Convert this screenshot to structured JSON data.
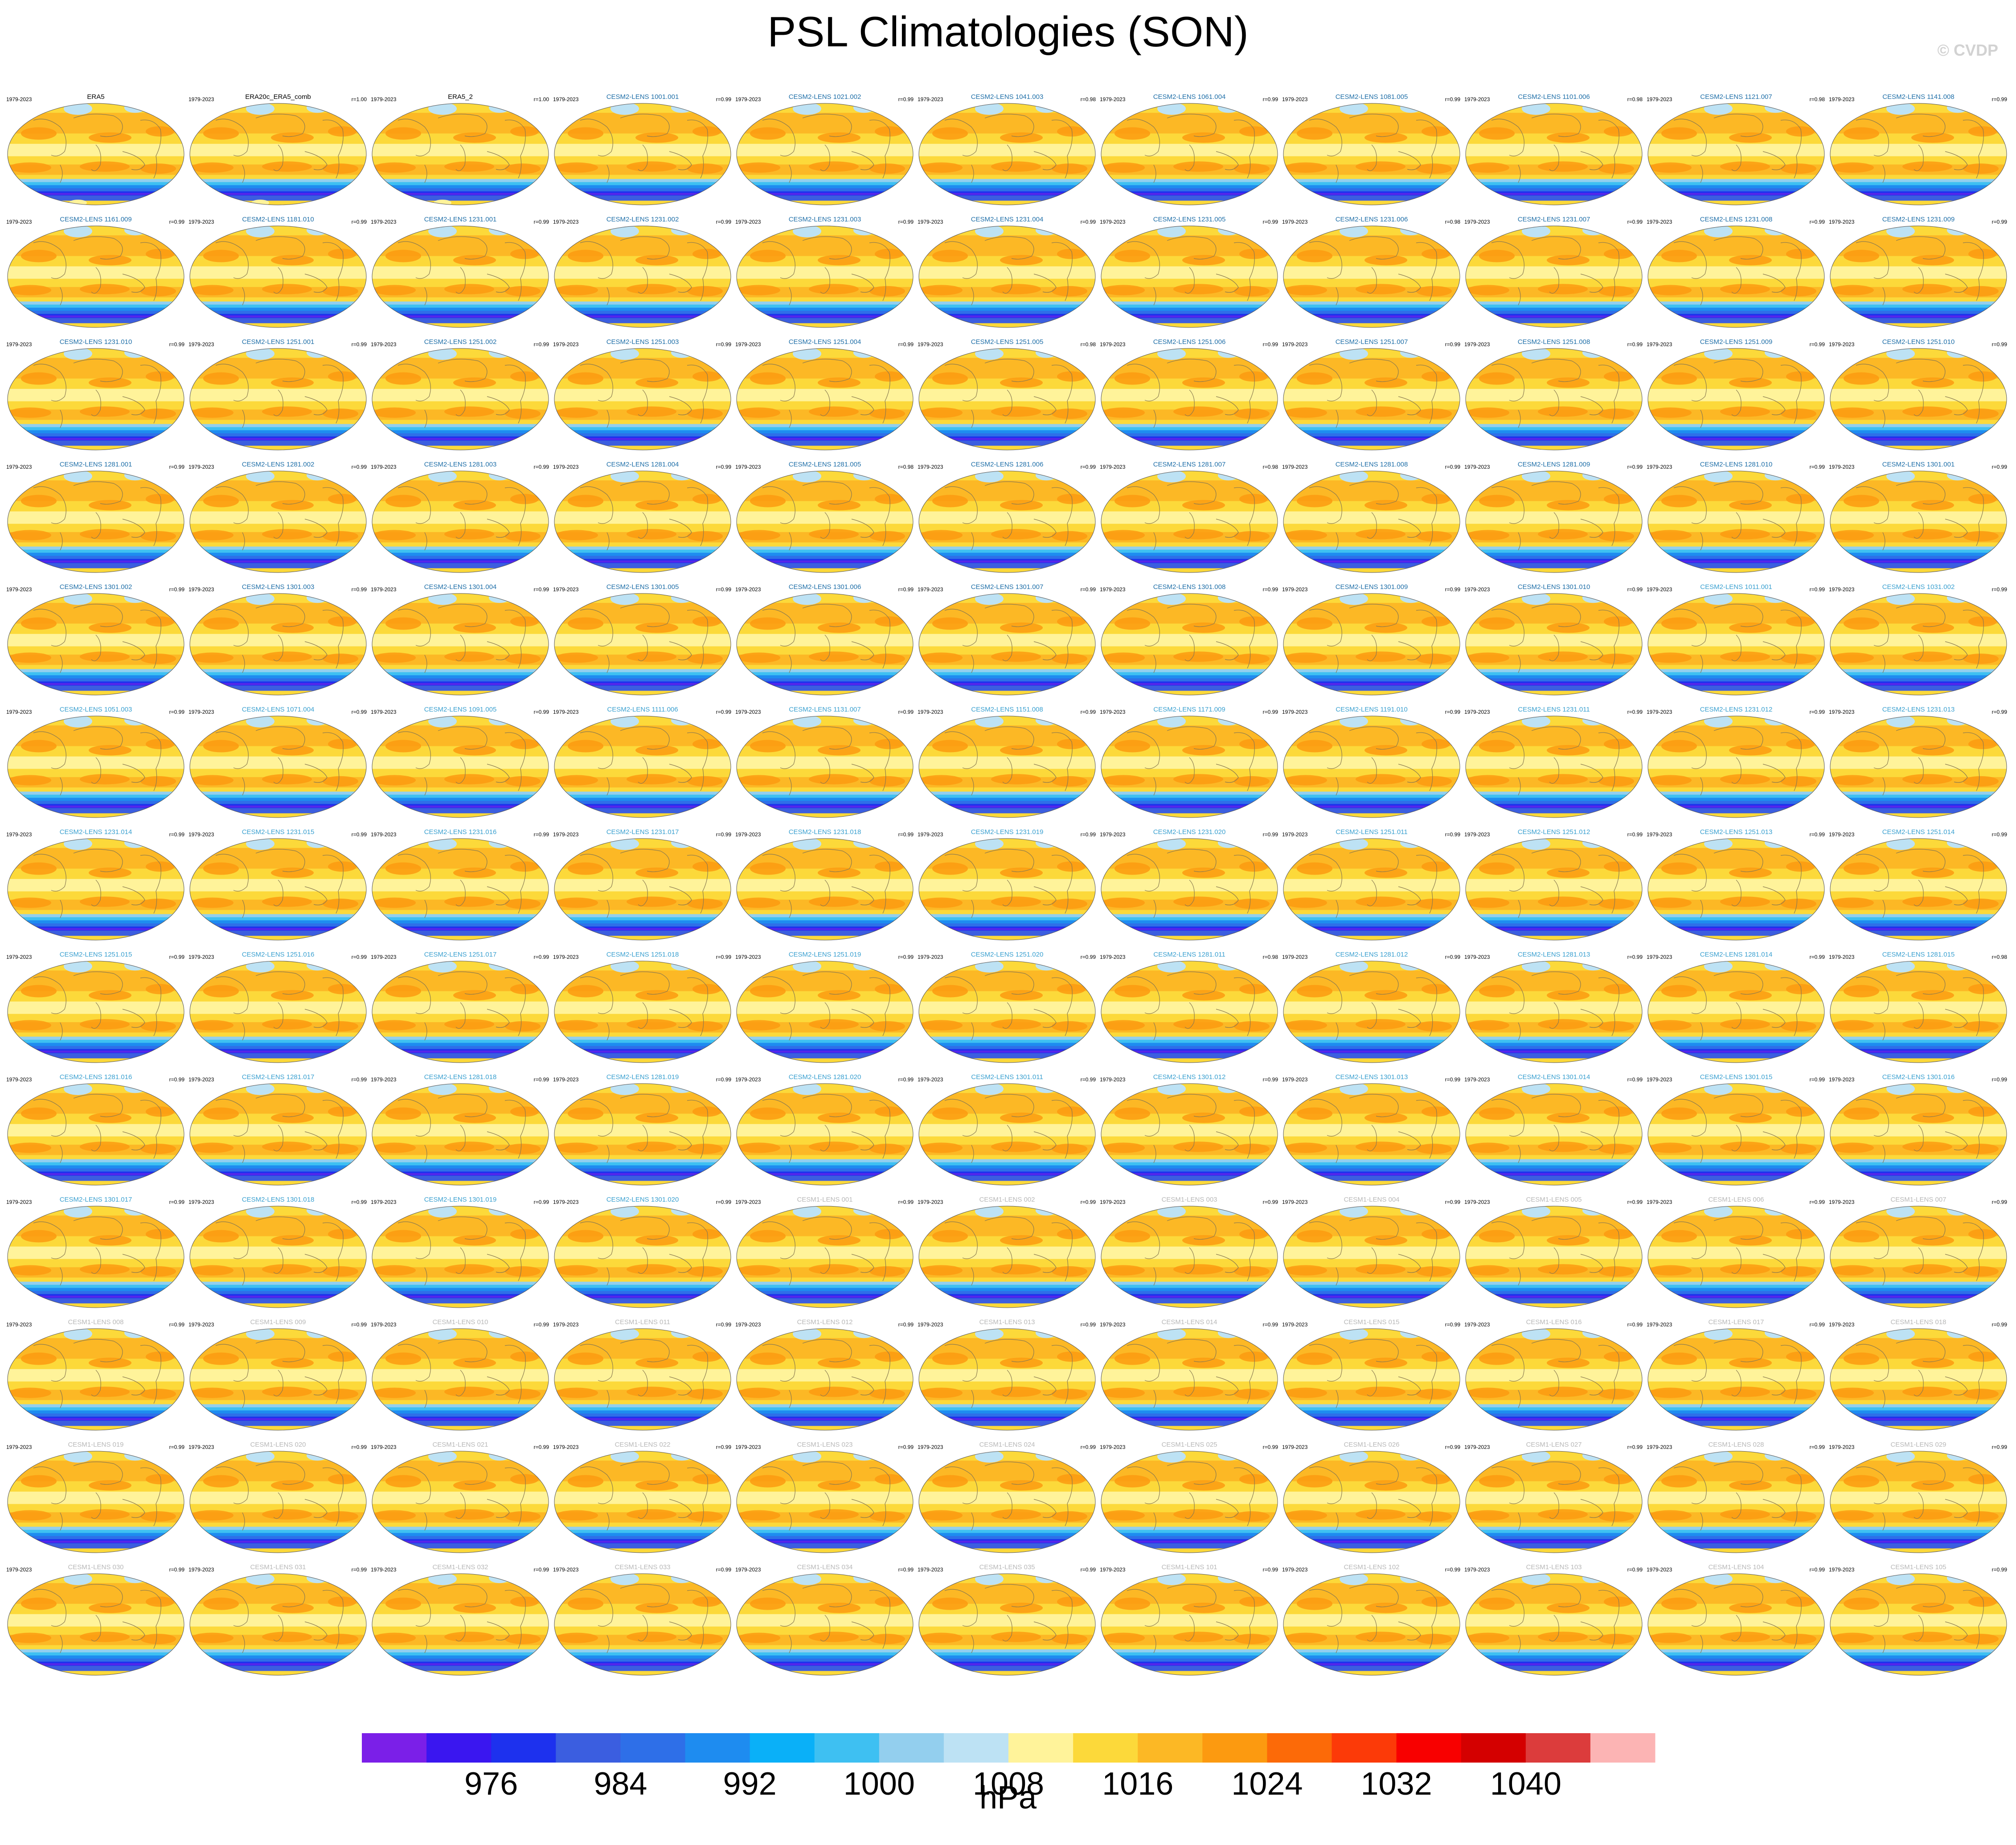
{
  "title": "PSL Climatologies (SON)",
  "watermark": "© CVDP",
  "units": "hPa",
  "colors": {
    "obs_title": "#000000",
    "cesm2_title": "#1f6fa8",
    "cesm1_title": "#b8b8b8"
  },
  "panels": [
    {
      "title": "ERA5",
      "period": "1979-2023",
      "r": "",
      "group": "obs"
    },
    {
      "title": "ERA20c_ERA5_comb",
      "period": "1979-2023",
      "r": "r=1.00",
      "group": "obs"
    },
    {
      "title": "ERA5_2",
      "period": "1979-2023",
      "r": "r=1.00",
      "group": "obs"
    },
    {
      "title": "CESM2-LENS 1001.001",
      "period": "1979-2023",
      "r": "r=0.99",
      "group": "cesm2"
    },
    {
      "title": "CESM2-LENS 1021.002",
      "period": "1979-2023",
      "r": "r=0.99",
      "group": "cesm2"
    },
    {
      "title": "CESM2-LENS 1041.003",
      "period": "1979-2023",
      "r": "r=0.98",
      "group": "cesm2"
    },
    {
      "title": "CESM2-LENS 1061.004",
      "period": "1979-2023",
      "r": "r=0.99",
      "group": "cesm2"
    },
    {
      "title": "CESM2-LENS 1081.005",
      "period": "1979-2023",
      "r": "r=0.99",
      "group": "cesm2"
    },
    {
      "title": "CESM2-LENS 1101.006",
      "period": "1979-2023",
      "r": "r=0.98",
      "group": "cesm2"
    },
    {
      "title": "CESM2-LENS 1121.007",
      "period": "1979-2023",
      "r": "r=0.98",
      "group": "cesm2"
    },
    {
      "title": "CESM2-LENS 1141.008",
      "period": "1979-2023",
      "r": "r=0.99",
      "group": "cesm2"
    },
    {
      "title": "CESM2-LENS 1161.009",
      "period": "1979-2023",
      "r": "r=0.99",
      "group": "cesm2"
    },
    {
      "title": "CESM2-LENS 1181.010",
      "period": "1979-2023",
      "r": "r=0.99",
      "group": "cesm2"
    },
    {
      "title": "CESM2-LENS 1231.001",
      "period": "1979-2023",
      "r": "r=0.99",
      "group": "cesm2"
    },
    {
      "title": "CESM2-LENS 1231.002",
      "period": "1979-2023",
      "r": "r=0.99",
      "group": "cesm2"
    },
    {
      "title": "CESM2-LENS 1231.003",
      "period": "1979-2023",
      "r": "r=0.99",
      "group": "cesm2"
    },
    {
      "title": "CESM2-LENS 1231.004",
      "period": "1979-2023",
      "r": "r=0.99",
      "group": "cesm2"
    },
    {
      "title": "CESM2-LENS 1231.005",
      "period": "1979-2023",
      "r": "r=0.99",
      "group": "cesm2"
    },
    {
      "title": "CESM2-LENS 1231.006",
      "period": "1979-2023",
      "r": "r=0.98",
      "group": "cesm2"
    },
    {
      "title": "CESM2-LENS 1231.007",
      "period": "1979-2023",
      "r": "r=0.99",
      "group": "cesm2"
    },
    {
      "title": "CESM2-LENS 1231.008",
      "period": "1979-2023",
      "r": "r=0.99",
      "group": "cesm2"
    },
    {
      "title": "CESM2-LENS 1231.009",
      "period": "1979-2023",
      "r": "r=0.99",
      "group": "cesm2"
    },
    {
      "title": "CESM2-LENS 1231.010",
      "period": "1979-2023",
      "r": "r=0.99",
      "group": "cesm2"
    },
    {
      "title": "CESM2-LENS 1251.001",
      "period": "1979-2023",
      "r": "r=0.99",
      "group": "cesm2"
    },
    {
      "title": "CESM2-LENS 1251.002",
      "period": "1979-2023",
      "r": "r=0.99",
      "group": "cesm2"
    },
    {
      "title": "CESM2-LENS 1251.003",
      "period": "1979-2023",
      "r": "r=0.99",
      "group": "cesm2"
    },
    {
      "title": "CESM2-LENS 1251.004",
      "period": "1979-2023",
      "r": "r=0.99",
      "group": "cesm2"
    },
    {
      "title": "CESM2-LENS 1251.005",
      "period": "1979-2023",
      "r": "r=0.98",
      "group": "cesm2"
    },
    {
      "title": "CESM2-LENS 1251.006",
      "period": "1979-2023",
      "r": "r=0.99",
      "group": "cesm2"
    },
    {
      "title": "CESM2-LENS 1251.007",
      "period": "1979-2023",
      "r": "r=0.99",
      "group": "cesm2"
    },
    {
      "title": "CESM2-LENS 1251.008",
      "period": "1979-2023",
      "r": "r=0.99",
      "group": "cesm2"
    },
    {
      "title": "CESM2-LENS 1251.009",
      "period": "1979-2023",
      "r": "r=0.99",
      "group": "cesm2"
    },
    {
      "title": "CESM2-LENS 1251.010",
      "period": "1979-2023",
      "r": "r=0.99",
      "group": "cesm2"
    },
    {
      "title": "CESM2-LENS 1281.001",
      "period": "1979-2023",
      "r": "r=0.99",
      "group": "cesm2"
    },
    {
      "title": "CESM2-LENS 1281.002",
      "period": "1979-2023",
      "r": "r=0.99",
      "group": "cesm2"
    },
    {
      "title": "CESM2-LENS 1281.003",
      "period": "1979-2023",
      "r": "r=0.99",
      "group": "cesm2"
    },
    {
      "title": "CESM2-LENS 1281.004",
      "period": "1979-2023",
      "r": "r=0.99",
      "group": "cesm2"
    },
    {
      "title": "CESM2-LENS 1281.005",
      "period": "1979-2023",
      "r": "r=0.98",
      "group": "cesm2"
    },
    {
      "title": "CESM2-LENS 1281.006",
      "period": "1979-2023",
      "r": "r=0.99",
      "group": "cesm2"
    },
    {
      "title": "CESM2-LENS 1281.007",
      "period": "1979-2023",
      "r": "r=0.98",
      "group": "cesm2"
    },
    {
      "title": "CESM2-LENS 1281.008",
      "period": "1979-2023",
      "r": "r=0.99",
      "group": "cesm2"
    },
    {
      "title": "CESM2-LENS 1281.009",
      "period": "1979-2023",
      "r": "r=0.99",
      "group": "cesm2"
    },
    {
      "title": "CESM2-LENS 1281.010",
      "period": "1979-2023",
      "r": "r=0.99",
      "group": "cesm2"
    },
    {
      "title": "CESM2-LENS 1301.001",
      "period": "1979-2023",
      "r": "r=0.99",
      "group": "cesm2"
    },
    {
      "title": "CESM2-LENS 1301.002",
      "period": "1979-2023",
      "r": "r=0.99",
      "group": "cesm2"
    },
    {
      "title": "CESM2-LENS 1301.003",
      "period": "1979-2023",
      "r": "r=0.99",
      "group": "cesm2"
    },
    {
      "title": "CESM2-LENS 1301.004",
      "period": "1979-2023",
      "r": "r=0.99",
      "group": "cesm2"
    },
    {
      "title": "CESM2-LENS 1301.005",
      "period": "1979-2023",
      "r": "r=0.99",
      "group": "cesm2"
    },
    {
      "title": "CESM2-LENS 1301.006",
      "period": "1979-2023",
      "r": "r=0.99",
      "group": "cesm2"
    },
    {
      "title": "CESM2-LENS 1301.007",
      "period": "1979-2023",
      "r": "r=0.99",
      "group": "cesm2"
    },
    {
      "title": "CESM2-LENS 1301.008",
      "period": "1979-2023",
      "r": "r=0.99",
      "group": "cesm2"
    },
    {
      "title": "CESM2-LENS 1301.009",
      "period": "1979-2023",
      "r": "r=0.99",
      "group": "cesm2"
    },
    {
      "title": "CESM2-LENS 1301.010",
      "period": "1979-2023",
      "r": "r=0.99",
      "group": "cesm2"
    },
    {
      "title": "CESM2-LENS 1011.001",
      "period": "1979-2023",
      "r": "r=0.99",
      "group": "cesm2b"
    },
    {
      "title": "CESM2-LENS 1031.002",
      "period": "1979-2023",
      "r": "r=0.99",
      "group": "cesm2b"
    },
    {
      "title": "CESM2-LENS 1051.003",
      "period": "1979-2023",
      "r": "r=0.99",
      "group": "cesm2b"
    },
    {
      "title": "CESM2-LENS 1071.004",
      "period": "1979-2023",
      "r": "r=0.99",
      "group": "cesm2b"
    },
    {
      "title": "CESM2-LENS 1091.005",
      "period": "1979-2023",
      "r": "r=0.99",
      "group": "cesm2b"
    },
    {
      "title": "CESM2-LENS 1111.006",
      "period": "1979-2023",
      "r": "r=0.99",
      "group": "cesm2b"
    },
    {
      "title": "CESM2-LENS 1131.007",
      "period": "1979-2023",
      "r": "r=0.99",
      "group": "cesm2b"
    },
    {
      "title": "CESM2-LENS 1151.008",
      "period": "1979-2023",
      "r": "r=0.99",
      "group": "cesm2b"
    },
    {
      "title": "CESM2-LENS 1171.009",
      "period": "1979-2023",
      "r": "r=0.99",
      "group": "cesm2b"
    },
    {
      "title": "CESM2-LENS 1191.010",
      "period": "1979-2023",
      "r": "r=0.99",
      "group": "cesm2b"
    },
    {
      "title": "CESM2-LENS 1231.011",
      "period": "1979-2023",
      "r": "r=0.99",
      "group": "cesm2b"
    },
    {
      "title": "CESM2-LENS 1231.012",
      "period": "1979-2023",
      "r": "r=0.99",
      "group": "cesm2b"
    },
    {
      "title": "CESM2-LENS 1231.013",
      "period": "1979-2023",
      "r": "r=0.99",
      "group": "cesm2b"
    },
    {
      "title": "CESM2-LENS 1231.014",
      "period": "1979-2023",
      "r": "r=0.99",
      "group": "cesm2b"
    },
    {
      "title": "CESM2-LENS 1231.015",
      "period": "1979-2023",
      "r": "r=0.99",
      "group": "cesm2b"
    },
    {
      "title": "CESM2-LENS 1231.016",
      "period": "1979-2023",
      "r": "r=0.99",
      "group": "cesm2b"
    },
    {
      "title": "CESM2-LENS 1231.017",
      "period": "1979-2023",
      "r": "r=0.99",
      "group": "cesm2b"
    },
    {
      "title": "CESM2-LENS 1231.018",
      "period": "1979-2023",
      "r": "r=0.99",
      "group": "cesm2b"
    },
    {
      "title": "CESM2-LENS 1231.019",
      "period": "1979-2023",
      "r": "r=0.99",
      "group": "cesm2b"
    },
    {
      "title": "CESM2-LENS 1231.020",
      "period": "1979-2023",
      "r": "r=0.99",
      "group": "cesm2b"
    },
    {
      "title": "CESM2-LENS 1251.011",
      "period": "1979-2023",
      "r": "r=0.99",
      "group": "cesm2b"
    },
    {
      "title": "CESM2-LENS 1251.012",
      "period": "1979-2023",
      "r": "r=0.99",
      "group": "cesm2b"
    },
    {
      "title": "CESM2-LENS 1251.013",
      "period": "1979-2023",
      "r": "r=0.99",
      "group": "cesm2b"
    },
    {
      "title": "CESM2-LENS 1251.014",
      "period": "1979-2023",
      "r": "r=0.99",
      "group": "cesm2b"
    },
    {
      "title": "CESM2-LENS 1251.015",
      "period": "1979-2023",
      "r": "r=0.99",
      "group": "cesm2b"
    },
    {
      "title": "CESM2-LENS 1251.016",
      "period": "1979-2023",
      "r": "r=0.99",
      "group": "cesm2b"
    },
    {
      "title": "CESM2-LENS 1251.017",
      "period": "1979-2023",
      "r": "r=0.99",
      "group": "cesm2b"
    },
    {
      "title": "CESM2-LENS 1251.018",
      "period": "1979-2023",
      "r": "r=0.99",
      "group": "cesm2b"
    },
    {
      "title": "CESM2-LENS 1251.019",
      "period": "1979-2023",
      "r": "r=0.99",
      "group": "cesm2b"
    },
    {
      "title": "CESM2-LENS 1251.020",
      "period": "1979-2023",
      "r": "r=0.99",
      "group": "cesm2b"
    },
    {
      "title": "CESM2-LENS 1281.011",
      "period": "1979-2023",
      "r": "r=0.98",
      "group": "cesm2b"
    },
    {
      "title": "CESM2-LENS 1281.012",
      "period": "1979-2023",
      "r": "r=0.99",
      "group": "cesm2b"
    },
    {
      "title": "CESM2-LENS 1281.013",
      "period": "1979-2023",
      "r": "r=0.99",
      "group": "cesm2b"
    },
    {
      "title": "CESM2-LENS 1281.014",
      "period": "1979-2023",
      "r": "r=0.99",
      "group": "cesm2b"
    },
    {
      "title": "CESM2-LENS 1281.015",
      "period": "1979-2023",
      "r": "r=0.98",
      "group": "cesm2b"
    },
    {
      "title": "CESM2-LENS 1281.016",
      "period": "1979-2023",
      "r": "r=0.99",
      "group": "cesm2b"
    },
    {
      "title": "CESM2-LENS 1281.017",
      "period": "1979-2023",
      "r": "r=0.99",
      "group": "cesm2b"
    },
    {
      "title": "CESM2-LENS 1281.018",
      "period": "1979-2023",
      "r": "r=0.99",
      "group": "cesm2b"
    },
    {
      "title": "CESM2-LENS 1281.019",
      "period": "1979-2023",
      "r": "r=0.99",
      "group": "cesm2b"
    },
    {
      "title": "CESM2-LENS 1281.020",
      "period": "1979-2023",
      "r": "r=0.99",
      "group": "cesm2b"
    },
    {
      "title": "CESM2-LENS 1301.011",
      "period": "1979-2023",
      "r": "r=0.99",
      "group": "cesm2b"
    },
    {
      "title": "CESM2-LENS 1301.012",
      "period": "1979-2023",
      "r": "r=0.99",
      "group": "cesm2b"
    },
    {
      "title": "CESM2-LENS 1301.013",
      "period": "1979-2023",
      "r": "r=0.99",
      "group": "cesm2b"
    },
    {
      "title": "CESM2-LENS 1301.014",
      "period": "1979-2023",
      "r": "r=0.99",
      "group": "cesm2b"
    },
    {
      "title": "CESM2-LENS 1301.015",
      "period": "1979-2023",
      "r": "r=0.99",
      "group": "cesm2b"
    },
    {
      "title": "CESM2-LENS 1301.016",
      "period": "1979-2023",
      "r": "r=0.99",
      "group": "cesm2b"
    },
    {
      "title": "CESM2-LENS 1301.017",
      "period": "1979-2023",
      "r": "r=0.99",
      "group": "cesm2b"
    },
    {
      "title": "CESM2-LENS 1301.018",
      "period": "1979-2023",
      "r": "r=0.99",
      "group": "cesm2b"
    },
    {
      "title": "CESM2-LENS 1301.019",
      "period": "1979-2023",
      "r": "r=0.99",
      "group": "cesm2b"
    },
    {
      "title": "CESM2-LENS 1301.020",
      "period": "1979-2023",
      "r": "r=0.99",
      "group": "cesm2b"
    },
    {
      "title": "CESM1-LENS 001",
      "period": "1979-2023",
      "r": "r=0.99",
      "group": "cesm1"
    },
    {
      "title": "CESM1-LENS 002",
      "period": "1979-2023",
      "r": "r=0.99",
      "group": "cesm1"
    },
    {
      "title": "CESM1-LENS 003",
      "period": "1979-2023",
      "r": "r=0.99",
      "group": "cesm1"
    },
    {
      "title": "CESM1-LENS 004",
      "period": "1979-2023",
      "r": "r=0.99",
      "group": "cesm1"
    },
    {
      "title": "CESM1-LENS 005",
      "period": "1979-2023",
      "r": "r=0.99",
      "group": "cesm1"
    },
    {
      "title": "CESM1-LENS 006",
      "period": "1979-2023",
      "r": "r=0.99",
      "group": "cesm1"
    },
    {
      "title": "CESM1-LENS 007",
      "period": "1979-2023",
      "r": "r=0.99",
      "group": "cesm1"
    },
    {
      "title": "CESM1-LENS 008",
      "period": "1979-2023",
      "r": "r=0.99",
      "group": "cesm1"
    },
    {
      "title": "CESM1-LENS 009",
      "period": "1979-2023",
      "r": "r=0.99",
      "group": "cesm1"
    },
    {
      "title": "CESM1-LENS 010",
      "period": "1979-2023",
      "r": "r=0.99",
      "group": "cesm1"
    },
    {
      "title": "CESM1-LENS 011",
      "period": "1979-2023",
      "r": "r=0.99",
      "group": "cesm1"
    },
    {
      "title": "CESM1-LENS 012",
      "period": "1979-2023",
      "r": "r=0.99",
      "group": "cesm1"
    },
    {
      "title": "CESM1-LENS 013",
      "period": "1979-2023",
      "r": "r=0.99",
      "group": "cesm1"
    },
    {
      "title": "CESM1-LENS 014",
      "period": "1979-2023",
      "r": "r=0.99",
      "group": "cesm1"
    },
    {
      "title": "CESM1-LENS 015",
      "period": "1979-2023",
      "r": "r=0.99",
      "group": "cesm1"
    },
    {
      "title": "CESM1-LENS 016",
      "period": "1979-2023",
      "r": "r=0.99",
      "group": "cesm1"
    },
    {
      "title": "CESM1-LENS 017",
      "period": "1979-2023",
      "r": "r=0.99",
      "group": "cesm1"
    },
    {
      "title": "CESM1-LENS 018",
      "period": "1979-2023",
      "r": "r=0.99",
      "group": "cesm1"
    },
    {
      "title": "CESM1-LENS 019",
      "period": "1979-2023",
      "r": "r=0.99",
      "group": "cesm1"
    },
    {
      "title": "CESM1-LENS 020",
      "period": "1979-2023",
      "r": "r=0.99",
      "group": "cesm1"
    },
    {
      "title": "CESM1-LENS 021",
      "period": "1979-2023",
      "r": "r=0.99",
      "group": "cesm1"
    },
    {
      "title": "CESM1-LENS 022",
      "period": "1979-2023",
      "r": "r=0.99",
      "group": "cesm1"
    },
    {
      "title": "CESM1-LENS 023",
      "period": "1979-2023",
      "r": "r=0.99",
      "group": "cesm1"
    },
    {
      "title": "CESM1-LENS 024",
      "period": "1979-2023",
      "r": "r=0.99",
      "group": "cesm1"
    },
    {
      "title": "CESM1-LENS 025",
      "period": "1979-2023",
      "r": "r=0.99",
      "group": "cesm1"
    },
    {
      "title": "CESM1-LENS 026",
      "period": "1979-2023",
      "r": "r=0.99",
      "group": "cesm1"
    },
    {
      "title": "CESM1-LENS 027",
      "period": "1979-2023",
      "r": "r=0.99",
      "group": "cesm1"
    },
    {
      "title": "CESM1-LENS 028",
      "period": "1979-2023",
      "r": "r=0.99",
      "group": "cesm1"
    },
    {
      "title": "CESM1-LENS 029",
      "period": "1979-2023",
      "r": "r=0.99",
      "group": "cesm1"
    },
    {
      "title": "CESM1-LENS 030",
      "period": "1979-2023",
      "r": "r=0.99",
      "group": "cesm1"
    },
    {
      "title": "CESM1-LENS 031",
      "period": "1979-2023",
      "r": "r=0.99",
      "group": "cesm1"
    },
    {
      "title": "CESM1-LENS 032",
      "period": "1979-2023",
      "r": "r=0.99",
      "group": "cesm1"
    },
    {
      "title": "CESM1-LENS 033",
      "period": "1979-2023",
      "r": "r=0.99",
      "group": "cesm1"
    },
    {
      "title": "CESM1-LENS 034",
      "period": "1979-2023",
      "r": "r=0.99",
      "group": "cesm1"
    },
    {
      "title": "CESM1-LENS 035",
      "period": "1979-2023",
      "r": "r=0.99",
      "group": "cesm1"
    },
    {
      "title": "CESM1-LENS 101",
      "period": "1979-2023",
      "r": "r=0.99",
      "group": "cesm1"
    },
    {
      "title": "CESM1-LENS 102",
      "period": "1979-2023",
      "r": "r=0.99",
      "group": "cesm1"
    },
    {
      "title": "CESM1-LENS 103",
      "period": "1979-2023",
      "r": "r=0.99",
      "group": "cesm1"
    },
    {
      "title": "CESM1-LENS 104",
      "period": "1979-2023",
      "r": "r=0.99",
      "group": "cesm1"
    },
    {
      "title": "CESM1-LENS 105",
      "period": "1979-2023",
      "r": "r=0.99",
      "group": "cesm1"
    }
  ],
  "chart_data": {
    "type": "heatmap",
    "title": "PSL Climatologies (SON)",
    "units": "hPa",
    "layout_grid": "11 columns x 13 rows of global maps",
    "colorbar": {
      "levels": [
        972,
        976,
        980,
        984,
        988,
        992,
        996,
        1000,
        1004,
        1008,
        1012,
        1016,
        1020,
        1024,
        1028,
        1032,
        1036,
        1040,
        1044
      ],
      "tick_labels": [
        "976",
        "984",
        "992",
        "1000",
        "1008",
        "1016",
        "1024",
        "1032",
        "1040"
      ],
      "tick_values": [
        976,
        984,
        992,
        1000,
        1008,
        1016,
        1024,
        1032,
        1040
      ],
      "colors": [
        "#7b1fe8",
        "#3a16f0",
        "#1d31ee",
        "#3b5ee0",
        "#2e6fe8",
        "#1e8cf0",
        "#0ab0f8",
        "#3ec0f2",
        "#93cfee",
        "#bde2f4",
        "#fff39a",
        "#fcd93a",
        "#fcb825",
        "#fc9a10",
        "#fc6a08",
        "#fc3a08",
        "#f80000",
        "#d40000",
        "#dc3c3c",
        "#fcb4b4"
      ]
    }
  }
}
